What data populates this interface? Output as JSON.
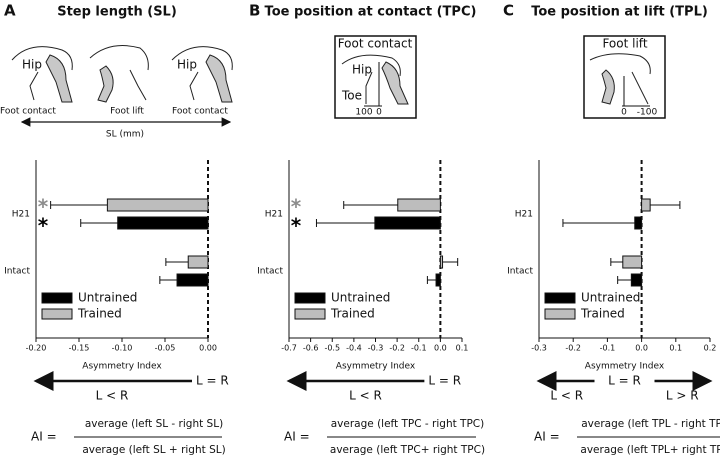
{
  "chart_data": [
    {
      "type": "bar",
      "panel": "A",
      "title": "Step length (SL)",
      "illustration": {
        "labels": [
          "Hip",
          "Hip",
          "Foot contact",
          "Foot lift",
          "Foot contact",
          "SL (mm)"
        ]
      },
      "categories": [
        "H21",
        "Intact"
      ],
      "series": [
        {
          "name": "Untrained",
          "color": "#000000",
          "values": [
            -0.105,
            -0.036
          ],
          "errors": [
            0.043,
            0.02
          ]
        },
        {
          "name": "Trained",
          "color": "#bdbdbd",
          "values": [
            -0.117,
            -0.023
          ],
          "errors": [
            0.066,
            0.026
          ]
        }
      ],
      "annotations": [
        {
          "text": "*",
          "color": "#8c8c8c"
        },
        {
          "text": "*",
          "color": "#000000"
        }
      ],
      "xlim": [
        -0.2,
        0
      ],
      "xticks": [
        {
          "value": -0.2,
          "label": "-0.20"
        },
        -0.15,
        {
          "value": -0.1,
          "label": "-0.10"
        },
        -0.05,
        {
          "value": 0,
          "label": "0.00"
        }
      ],
      "xlabel": "Asymmetry Index",
      "arrow": {
        "left": "L < R",
        "zero": "L = R"
      },
      "formula": {
        "lhs": "AI =",
        "numerator": "average (left SL - right SL)",
        "denominator": "average (left SL + right SL)"
      }
    },
    {
      "type": "bar",
      "panel": "B",
      "title": "Toe position at contact (TPC)",
      "illustration": {
        "caption": "Foot contact",
        "labels": [
          "Hip",
          "Toe",
          "100",
          "0"
        ]
      },
      "categories": [
        "H21",
        "Intact"
      ],
      "series": [
        {
          "name": "Untrained",
          "color": "#000000",
          "values": [
            -0.303,
            -0.02
          ],
          "errors": [
            0.27,
            0.04
          ]
        },
        {
          "name": "Trained",
          "color": "#bdbdbd",
          "values": [
            -0.197,
            0.01
          ],
          "errors": [
            0.25,
            0.07
          ]
        }
      ],
      "annotations": [
        {
          "text": "*",
          "color": "#8c8c8c"
        },
        {
          "text": "*",
          "color": "#000000"
        }
      ],
      "xlim": [
        -0.7,
        0.1
      ],
      "xticks": [
        -0.7,
        -0.6,
        -0.5,
        -0.4,
        -0.3,
        -0.2,
        -0.1,
        {
          "value": 0,
          "label": "0.0"
        },
        0.1
      ],
      "xlabel": "Asymmetry Index",
      "arrow": {
        "left": "L < R",
        "zero": "L = R"
      },
      "formula": {
        "lhs": "AI =",
        "numerator": "average (left TPC - right TPC)",
        "denominator": "average (left TPC+ right TPC)"
      }
    },
    {
      "type": "bar",
      "panel": "C",
      "title": "Toe position at lift (TPL)",
      "illustration": {
        "caption": "Foot lift",
        "labels": [
          "0",
          "-100"
        ]
      },
      "categories": [
        "H21",
        "Intact"
      ],
      "series": [
        {
          "name": "Untrained",
          "color": "#000000",
          "values": [
            -0.02,
            -0.03
          ],
          "errors": [
            0.21,
            0.04
          ]
        },
        {
          "name": "Trained",
          "color": "#bdbdbd",
          "values": [
            0.025,
            -0.055
          ],
          "errors": [
            0.087,
            0.035
          ]
        }
      ],
      "xlim": [
        -0.3,
        0.2
      ],
      "xticks": [
        -0.3,
        -0.2,
        -0.1,
        {
          "value": 0,
          "label": "0.0"
        },
        0.1,
        0.2
      ],
      "xlabel": "Asymmetry Index",
      "arrow": {
        "left": "L < R",
        "zero": "L = R",
        "right": "L > R"
      },
      "formula": {
        "lhs": "AI =",
        "numerator": "average (left TPL - right TPL)",
        "denominator": "average (left TPL+ right TPL)"
      }
    }
  ]
}
